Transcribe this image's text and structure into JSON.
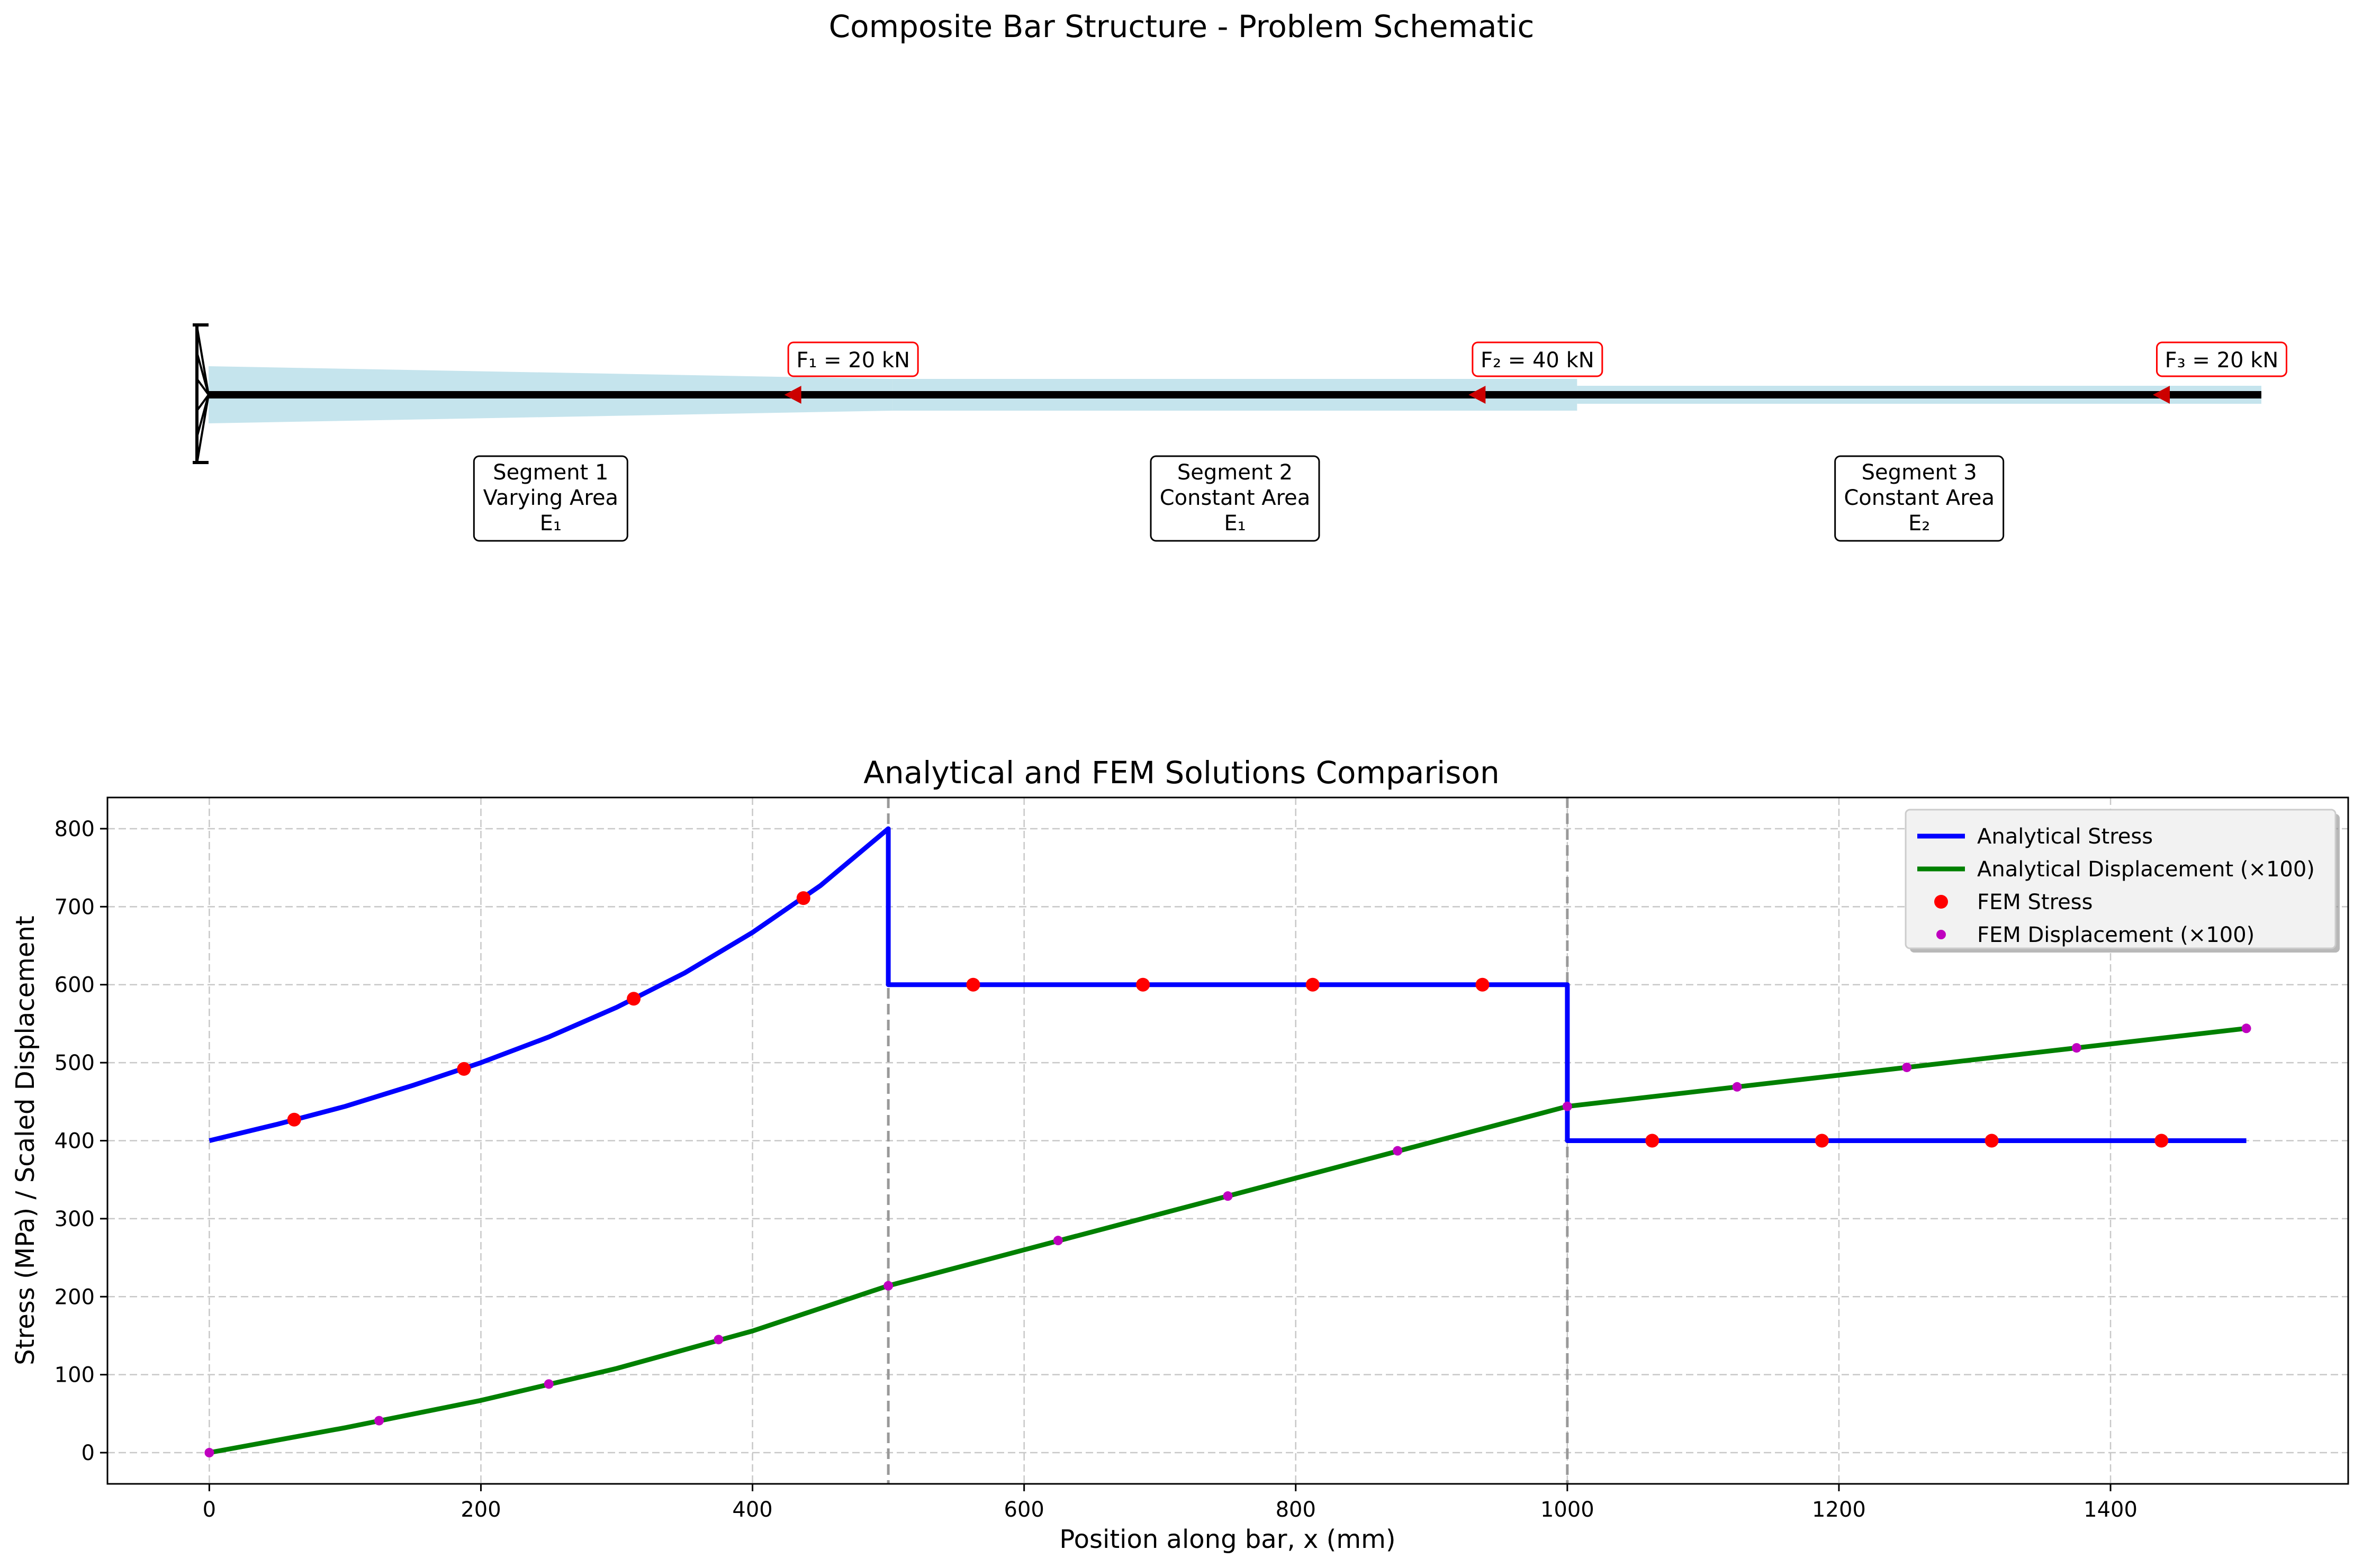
{
  "schematic": {
    "title": "Composite Bar Structure - Problem Schematic",
    "forces": [
      {
        "label": "F₁ = 20 kN",
        "x": 500
      },
      {
        "label": "F₂ = 40 kN",
        "x": 1000
      },
      {
        "label": "F₃ = 20 kN",
        "x": 1500
      }
    ],
    "segments": [
      {
        "line1": "Segment 1",
        "line2": "Varying Area",
        "line3": "E₁"
      },
      {
        "line1": "Segment 2",
        "line2": "Constant Area",
        "line3": "E₁"
      },
      {
        "line1": "Segment 3",
        "line2": "Constant Area",
        "line3": "E₂"
      }
    ],
    "colors": {
      "bar_fill": "#add8e6",
      "bar_line": "#000000",
      "force": "#ff0000"
    }
  },
  "chart_data": {
    "type": "line",
    "title": "Analytical and FEM Solutions Comparison",
    "xlabel": "Position along bar, x (mm)",
    "ylabel": "Stress (MPa) / Scaled Displacement",
    "xlim": [
      -75,
      1575
    ],
    "ylim": [
      -40,
      840
    ],
    "xticks": [
      0,
      200,
      400,
      600,
      800,
      1000,
      1200,
      1400
    ],
    "yticks": [
      0,
      100,
      200,
      300,
      400,
      500,
      600,
      700,
      800
    ],
    "grid": true,
    "legend_position": "upper-right",
    "interfaces": [
      500,
      1000
    ],
    "series": [
      {
        "name": "Analytical Stress",
        "style": "line",
        "color": "#0000ff",
        "x": [
          0,
          50,
          100,
          150,
          200,
          250,
          300,
          350,
          400,
          450,
          500,
          500,
          1000,
          1000,
          1500
        ],
        "values": [
          400,
          421,
          444,
          471,
          500,
          533,
          571,
          615,
          667,
          727,
          800,
          600,
          600,
          400,
          400
        ]
      },
      {
        "name": "Analytical Displacement (×100)",
        "style": "line",
        "color": "#008000",
        "x": [
          0,
          100,
          200,
          300,
          400,
          500,
          1000,
          1500
        ],
        "values": [
          0,
          32,
          67,
          108,
          156,
          214,
          444,
          544
        ]
      },
      {
        "name": "FEM Stress",
        "style": "markers",
        "color": "#ff0000",
        "x": [
          62.5,
          187.5,
          312.5,
          437.5,
          562.5,
          687.5,
          812.5,
          937.5,
          1062.5,
          1187.5,
          1312.5,
          1437.5
        ],
        "values": [
          427,
          492,
          582,
          711,
          600,
          600,
          600,
          600,
          400,
          400,
          400,
          400
        ]
      },
      {
        "name": "FEM Displacement (×100)",
        "style": "markers",
        "color": "#bf00bf",
        "x": [
          0,
          125,
          250,
          375,
          500,
          625,
          750,
          875,
          1000,
          1125,
          1250,
          1375,
          1500
        ],
        "values": [
          0,
          41,
          88,
          145,
          214,
          272,
          329,
          387,
          444,
          469,
          494,
          519,
          544
        ]
      }
    ]
  }
}
